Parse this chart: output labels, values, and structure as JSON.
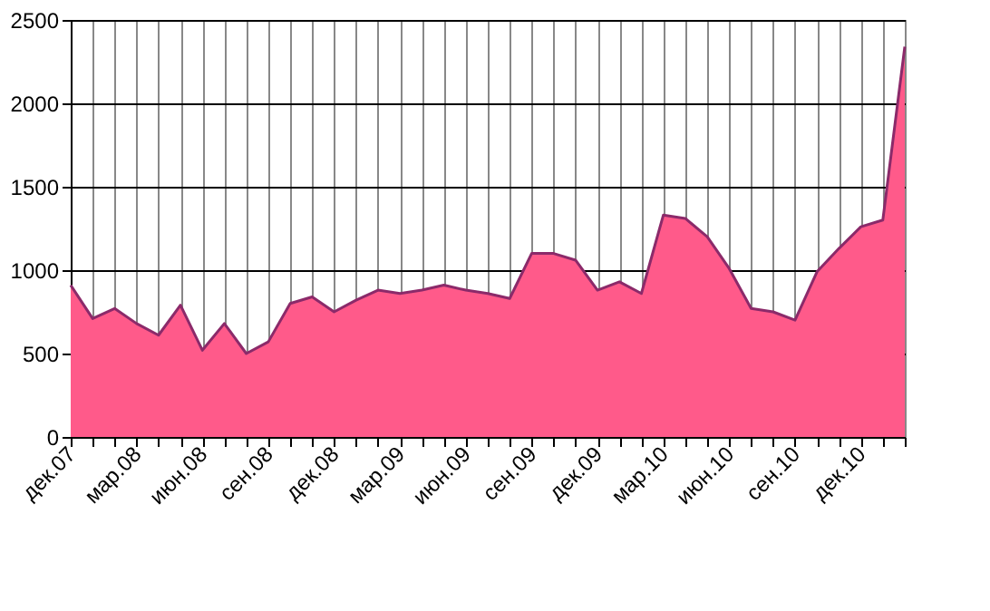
{
  "chart_data": {
    "type": "area",
    "categories": [
      "дек.07",
      null,
      null,
      "мар.08",
      null,
      null,
      "июн.08",
      null,
      null,
      "сен.08",
      null,
      null,
      "дек.08",
      null,
      null,
      "мар.09",
      null,
      null,
      "июн.09",
      null,
      null,
      "сен.09",
      null,
      null,
      "дек.09",
      null,
      null,
      "мар.10",
      null,
      null,
      "июн.10",
      null,
      null,
      "сен.10",
      null,
      null,
      "дек.10",
      null,
      null
    ],
    "series": [
      {
        "color": "#ff5a8a",
        "values": [
          910,
          710,
          770,
          680,
          610,
          790,
          520,
          680,
          500,
          570,
          800,
          840,
          750,
          820,
          880,
          860,
          880,
          910,
          880,
          860,
          830,
          1100,
          1100,
          1060,
          880,
          930,
          860,
          1330,
          1310,
          1200,
          1010,
          770,
          750,
          700,
          990,
          1130,
          1260,
          1300,
          2340
        ]
      }
    ],
    "ylim": [
      0,
      2500
    ],
    "yticks": [
      0,
      500,
      1000,
      1500,
      2000,
      2500
    ],
    "grid": true
  }
}
